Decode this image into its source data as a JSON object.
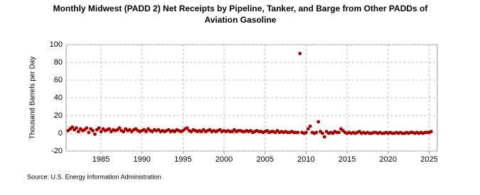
{
  "chart_data": {
    "type": "scatter",
    "title": [
      "Monthly Midwest (PADD 2) Net Receipts by Pipeline, Tanker, and Barge from Other PADDs of",
      "Aviation Gasoline"
    ],
    "y_label": "Thousand Barrels per Day",
    "source": "Source: U.S. Energy Information Administration",
    "color": "#a50000",
    "grid": true,
    "xlim": [
      1980.75,
      2026
    ],
    "xticks": [
      1985,
      1990,
      1995,
      2000,
      2005,
      2010,
      2015,
      2020,
      2025
    ],
    "ylim": [
      -20,
      100
    ],
    "yticks": [
      -20,
      0,
      20,
      40,
      60,
      80,
      100
    ],
    "x": [
      1981,
      1981.25,
      1981.5,
      1981.75,
      1982,
      1982.25,
      1982.5,
      1982.75,
      1983,
      1983.25,
      1983.5,
      1983.75,
      1984,
      1984.25,
      1984.5,
      1984.75,
      1985,
      1985.25,
      1985.5,
      1985.75,
      1986,
      1986.25,
      1986.5,
      1986.75,
      1987,
      1987.25,
      1987.5,
      1987.75,
      1988,
      1988.25,
      1988.5,
      1988.75,
      1989,
      1989.25,
      1989.5,
      1989.75,
      1990,
      1990.25,
      1990.5,
      1990.75,
      1991,
      1991.25,
      1991.5,
      1991.75,
      1992,
      1992.25,
      1992.5,
      1992.75,
      1993,
      1993.25,
      1993.5,
      1993.75,
      1994,
      1994.25,
      1994.5,
      1994.75,
      1995,
      1995.25,
      1995.5,
      1995.75,
      1996,
      1996.25,
      1996.5,
      1996.75,
      1997,
      1997.25,
      1997.5,
      1997.75,
      1998,
      1998.25,
      1998.5,
      1998.75,
      1999,
      1999.25,
      1999.5,
      1999.75,
      2000,
      2000.25,
      2000.5,
      2000.75,
      2001,
      2001.25,
      2001.5,
      2001.75,
      2002,
      2002.25,
      2002.5,
      2002.75,
      2003,
      2003.25,
      2003.5,
      2003.75,
      2004,
      2004.25,
      2004.5,
      2004.75,
      2005,
      2005.25,
      2005.5,
      2005.75,
      2006,
      2006.25,
      2006.5,
      2006.75,
      2007,
      2007.25,
      2007.5,
      2007.75,
      2008,
      2008.25,
      2008.5,
      2008.75,
      2009,
      2009.25,
      2009.5,
      2009.75,
      2010,
      2010.25,
      2010.5,
      2010.75,
      2011,
      2011.25,
      2011.5,
      2011.75,
      2012,
      2012.25,
      2012.5,
      2012.75,
      2013,
      2013.25,
      2013.5,
      2013.75,
      2014,
      2014.25,
      2014.5,
      2014.75,
      2015,
      2015.25,
      2015.5,
      2015.75,
      2016,
      2016.25,
      2016.5,
      2016.75,
      2017,
      2017.25,
      2017.5,
      2017.75,
      2018,
      2018.25,
      2018.5,
      2018.75,
      2019,
      2019.25,
      2019.5,
      2019.75,
      2020,
      2020.25,
      2020.5,
      2020.75,
      2021,
      2021.25,
      2021.5,
      2021.75,
      2022,
      2022.25,
      2022.5,
      2022.75,
      2023,
      2023.25,
      2023.5,
      2023.75,
      2024,
      2024.25,
      2024.5,
      2024.75,
      2025,
      2025.25
    ],
    "values": [
      3,
      5,
      7,
      4,
      6,
      2,
      5,
      3,
      4,
      6,
      1,
      5,
      3,
      -1,
      4,
      6,
      2,
      5,
      3,
      4,
      5,
      2,
      4,
      3,
      4,
      6,
      3,
      2,
      5,
      3,
      4,
      2,
      4,
      5,
      3,
      2,
      3,
      4,
      2,
      5,
      3,
      2,
      4,
      3,
      4,
      2,
      3,
      2,
      3,
      4,
      2,
      3,
      2,
      4,
      3,
      2,
      3,
      5,
      6,
      3,
      2,
      4,
      3,
      2,
      3,
      2,
      4,
      2,
      3,
      4,
      2,
      3,
      2,
      3,
      4,
      2,
      3,
      2,
      3,
      2,
      2,
      4,
      2,
      3,
      3,
      2,
      2,
      3,
      2,
      3,
      1,
      2,
      3,
      2,
      2,
      1,
      2,
      3,
      1,
      2,
      2,
      1,
      3,
      1,
      2,
      1,
      2,
      1,
      1,
      2,
      1,
      1,
      1,
      90,
      1,
      0,
      1,
      5,
      8,
      1,
      0,
      1,
      13,
      2,
      0,
      -4,
      2,
      0,
      1,
      0,
      2,
      1,
      1,
      5,
      3,
      1,
      0,
      1,
      0,
      1,
      0,
      1,
      2,
      0,
      1,
      0,
      1,
      0,
      0,
      1,
      1,
      0,
      1,
      0,
      0,
      1,
      0,
      1,
      0,
      0,
      1,
      0,
      1,
      0,
      0,
      1,
      0,
      1,
      1,
      0,
      1,
      0,
      1,
      0,
      1,
      1,
      1,
      2
    ]
  }
}
